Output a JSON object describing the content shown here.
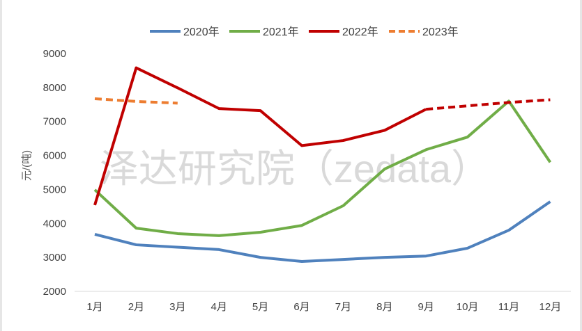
{
  "chart_data": {
    "type": "line",
    "title": "",
    "xlabel": "",
    "ylabel": "元/(吨)",
    "ylim": [
      2000,
      9000
    ],
    "yticks": [
      2000,
      3000,
      4000,
      5000,
      6000,
      7000,
      8000,
      9000
    ],
    "grid": false,
    "legend_position": "top",
    "categories": [
      "1月",
      "2月",
      "3月",
      "4月",
      "5月",
      "6月",
      "7月",
      "8月",
      "9月",
      "10月",
      "11月",
      "12月"
    ],
    "series": [
      {
        "name": "2020年",
        "color": "#4f81bd",
        "dash": false,
        "values": [
          3680,
          3370,
          3300,
          3230,
          3000,
          2880,
          2940,
          3000,
          3040,
          3270,
          3800,
          4640
        ]
      },
      {
        "name": "2021年",
        "color": "#70ad47",
        "dash": false,
        "values": [
          4990,
          3860,
          3700,
          3640,
          3740,
          3940,
          4520,
          5600,
          6170,
          6540,
          7600,
          5800
        ]
      },
      {
        "name": "2022年",
        "color": "#c00000",
        "dash": false,
        "dashed_from_index": 8,
        "values": [
          4540,
          8580,
          7990,
          7380,
          7320,
          6290,
          6440,
          6740,
          7360,
          7460,
          7560,
          7640
        ]
      },
      {
        "name": "2023年",
        "color": "#ed7d31",
        "dash": true,
        "values": [
          7670,
          7590,
          7540,
          null,
          null,
          null,
          null,
          null,
          null,
          null,
          null,
          null
        ]
      }
    ],
    "watermark": "泽达研究院（zedata）"
  }
}
